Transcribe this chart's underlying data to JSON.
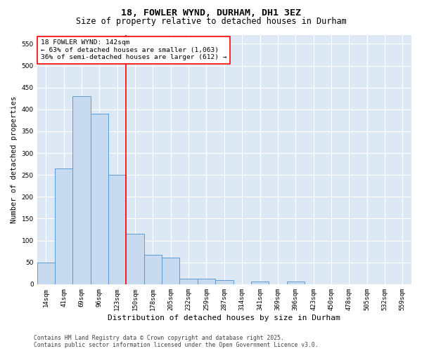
{
  "title1": "18, FOWLER WYND, DURHAM, DH1 3EZ",
  "title2": "Size of property relative to detached houses in Durham",
  "xlabel": "Distribution of detached houses by size in Durham",
  "ylabel": "Number of detached properties",
  "categories": [
    "14sqm",
    "41sqm",
    "69sqm",
    "96sqm",
    "123sqm",
    "150sqm",
    "178sqm",
    "205sqm",
    "232sqm",
    "259sqm",
    "287sqm",
    "314sqm",
    "341sqm",
    "369sqm",
    "396sqm",
    "423sqm",
    "450sqm",
    "478sqm",
    "505sqm",
    "532sqm",
    "559sqm"
  ],
  "values": [
    50,
    265,
    430,
    390,
    250,
    115,
    68,
    60,
    12,
    12,
    10,
    0,
    6,
    0,
    6,
    0,
    0,
    0,
    0,
    0,
    0
  ],
  "bar_color": "#c8daf0",
  "bar_edge_color": "#5b9bd5",
  "vline_color": "red",
  "vline_x": 4.5,
  "annotation_text": "18 FOWLER WYND: 142sqm\n← 63% of detached houses are smaller (1,063)\n36% of semi-detached houses are larger (612) →",
  "annotation_box_color": "white",
  "annotation_box_edge_color": "red",
  "ylim": [
    0,
    570
  ],
  "yticks": [
    0,
    50,
    100,
    150,
    200,
    250,
    300,
    350,
    400,
    450,
    500,
    550
  ],
  "background_color": "#dde8f5",
  "grid_color": "white",
  "footer_text": "Contains HM Land Registry data © Crown copyright and database right 2025.\nContains public sector information licensed under the Open Government Licence v3.0.",
  "title1_fontsize": 9.5,
  "title2_fontsize": 8.5,
  "xlabel_fontsize": 8,
  "ylabel_fontsize": 7.5,
  "tick_fontsize": 6.5,
  "annotation_fontsize": 6.8,
  "footer_fontsize": 5.8
}
